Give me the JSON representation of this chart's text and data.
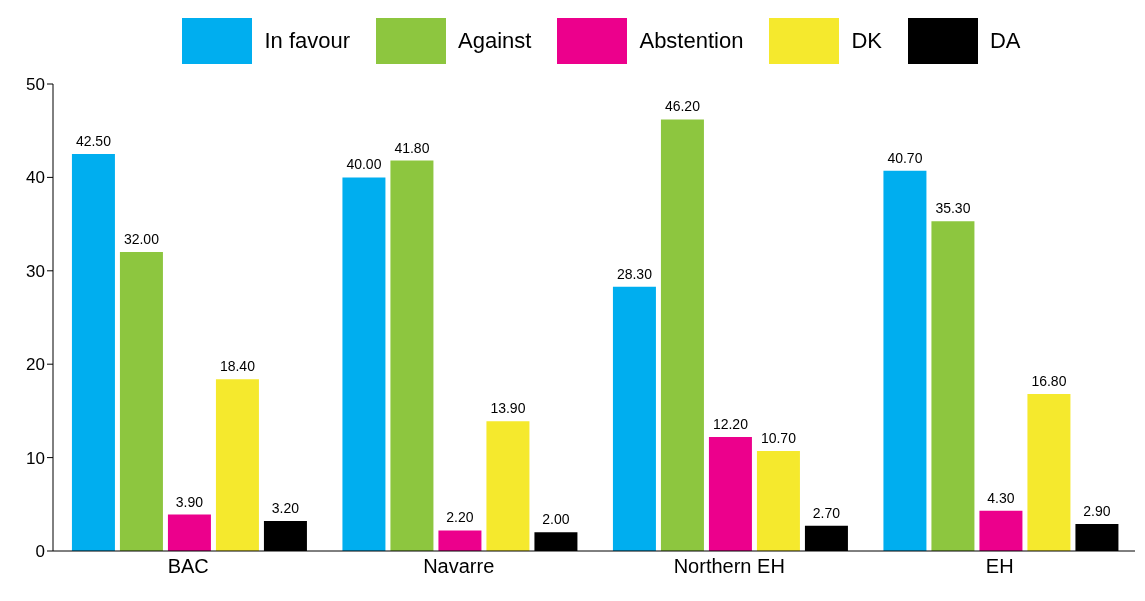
{
  "chart_data": {
    "type": "bar",
    "categories": [
      "BAC",
      "Navarre",
      "Northern EH",
      "EH"
    ],
    "series": [
      {
        "name": "In favour",
        "color": "#00aeef",
        "values": [
          42.5,
          40.0,
          28.3,
          40.7
        ],
        "value_labels": [
          "42.50",
          "40.00",
          "28.30",
          "40.70"
        ]
      },
      {
        "name": "Against",
        "color": "#8dc63f",
        "values": [
          32.0,
          41.8,
          46.2,
          35.3
        ],
        "value_labels": [
          "32.00",
          "41.80",
          "46.20",
          "35.30"
        ]
      },
      {
        "name": "Abstention",
        "color": "#ec008c",
        "values": [
          3.9,
          2.2,
          12.2,
          4.3
        ],
        "value_labels": [
          "3.90",
          "2.20",
          "12.20",
          "4.30"
        ]
      },
      {
        "name": "DK",
        "color": "#f5e92d",
        "values": [
          18.4,
          13.9,
          10.7,
          16.8
        ],
        "value_labels": [
          "18.40",
          "13.90",
          "10.70",
          "16.80"
        ]
      },
      {
        "name": "DA",
        "color": "#000000",
        "values": [
          3.2,
          2.0,
          2.7,
          2.9
        ],
        "value_labels": [
          "3.20",
          "2.00",
          "2.70",
          "2.90"
        ]
      }
    ],
    "ylim": [
      0,
      50
    ],
    "yticks": [
      0,
      10,
      20,
      30,
      40,
      50
    ],
    "grid": false,
    "legend": "top"
  }
}
